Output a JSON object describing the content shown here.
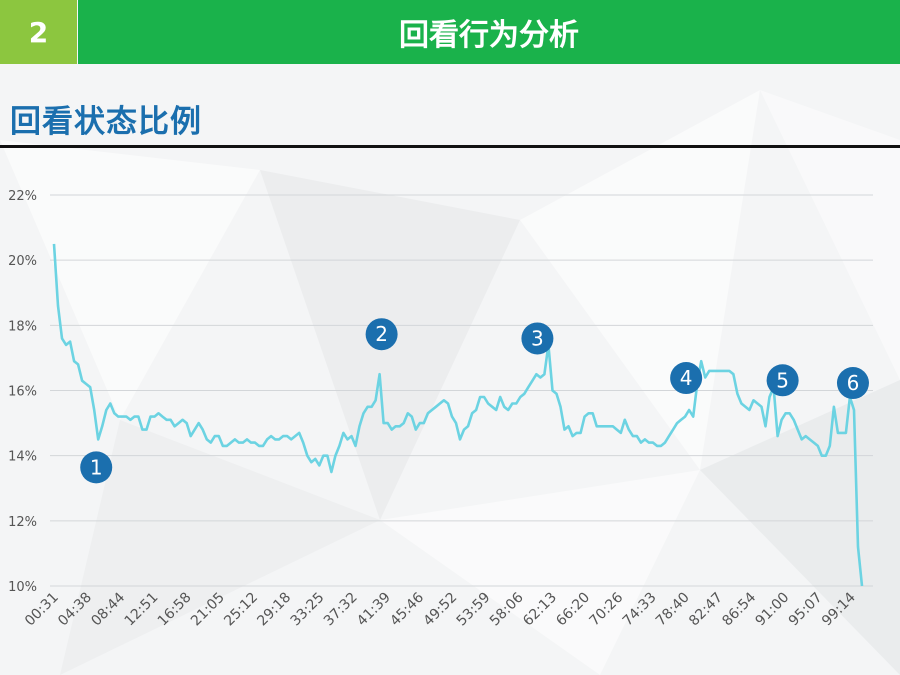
{
  "header": {
    "section_number": "2",
    "title": "回看行为分析"
  },
  "section": {
    "title": "回看状态比例"
  },
  "colors": {
    "line": "#6cd3e2",
    "marker": "#1b6fae",
    "header_green": "#1ab24b",
    "number_green": "#8cc63f"
  },
  "chart_data": {
    "type": "line",
    "title": "",
    "xlabel": "",
    "ylabel": "",
    "ylim": [
      10,
      22
    ],
    "y_ticks": [
      "10%",
      "12%",
      "14%",
      "16%",
      "18%",
      "20%",
      "22%"
    ],
    "y_tick_values": [
      10,
      12,
      14,
      16,
      18,
      20,
      22
    ],
    "x_tick_labels": [
      "00:31",
      "04:38",
      "08:44",
      "12:51",
      "16:58",
      "21:05",
      "25:12",
      "29:18",
      "33:25",
      "37:32",
      "41:39",
      "45:46",
      "49:52",
      "53:59",
      "58:06",
      "62:13",
      "66:20",
      "70:26",
      "74:33",
      "78:40",
      "82:47",
      "86:54",
      "91:00",
      "95:07",
      "99:14"
    ],
    "grid": true,
    "legend": "none",
    "series": [
      {
        "values": [
          20.5,
          18.6,
          17.6,
          17.4,
          17.5,
          16.9,
          16.8,
          16.3,
          16.2,
          16.1,
          15.4,
          14.5,
          14.9,
          15.4,
          15.6,
          15.3,
          15.2,
          15.2,
          15.2,
          15.1,
          15.2,
          15.2,
          14.8,
          14.8,
          15.2,
          15.2,
          15.3,
          15.2,
          15.1,
          15.1,
          14.9,
          15.0,
          15.1,
          15.0,
          14.6,
          14.8,
          15.0,
          14.8,
          14.5,
          14.4,
          14.6,
          14.6,
          14.3,
          14.3,
          14.4,
          14.5,
          14.4,
          14.4,
          14.5,
          14.4,
          14.4,
          14.3,
          14.3,
          14.5,
          14.6,
          14.5,
          14.5,
          14.6,
          14.6,
          14.5,
          14.6,
          14.7,
          14.4,
          14.0,
          13.8,
          13.9,
          13.7,
          14.0,
          14.0,
          13.5,
          14.0,
          14.3,
          14.7,
          14.5,
          14.6,
          14.3,
          14.9,
          15.3,
          15.5,
          15.5,
          15.7,
          16.5,
          15.0,
          15.0,
          14.8,
          14.9,
          14.9,
          15.0,
          15.3,
          15.2,
          14.8,
          15.0,
          15.0,
          15.3,
          15.4,
          15.5,
          15.6,
          15.7,
          15.6,
          15.2,
          15.0,
          14.5,
          14.8,
          14.9,
          15.3,
          15.4,
          15.8,
          15.8,
          15.6,
          15.5,
          15.4,
          15.8,
          15.5,
          15.4,
          15.6,
          15.6,
          15.8,
          15.9,
          16.1,
          16.3,
          16.5,
          16.4,
          16.5,
          17.4,
          16.0,
          15.9,
          15.5,
          14.8,
          14.9,
          14.6,
          14.7,
          14.7,
          15.2,
          15.3,
          15.3,
          14.9,
          14.9,
          14.9,
          14.9,
          14.9,
          14.8,
          14.7,
          15.1,
          14.8,
          14.6,
          14.6,
          14.4,
          14.5,
          14.4,
          14.4,
          14.3,
          14.3,
          14.4,
          14.6,
          14.8,
          15.0,
          15.1,
          15.2,
          15.4,
          15.2,
          16.2,
          16.9,
          16.4,
          16.6,
          16.6,
          16.6,
          16.6,
          16.6,
          16.6,
          16.5,
          15.9,
          15.6,
          15.5,
          15.4,
          15.7,
          15.6,
          15.5,
          14.9,
          15.8,
          16.1,
          14.6,
          15.1,
          15.3,
          15.3,
          15.1,
          14.8,
          14.5,
          14.6,
          14.5,
          14.4,
          14.3,
          14.0,
          14.0,
          14.3,
          15.5,
          14.7,
          14.7,
          14.7,
          15.8,
          15.4,
          11.2,
          10.0
        ]
      }
    ],
    "annotations": [
      {
        "label": "1",
        "point_index": 11
      },
      {
        "label": "2",
        "point_index": 81
      },
      {
        "label": "3",
        "point_index": 121
      },
      {
        "label": "4",
        "point_index": 158
      },
      {
        "label": "5",
        "point_index": 182
      },
      {
        "label": "6",
        "point_index": 199
      }
    ]
  }
}
